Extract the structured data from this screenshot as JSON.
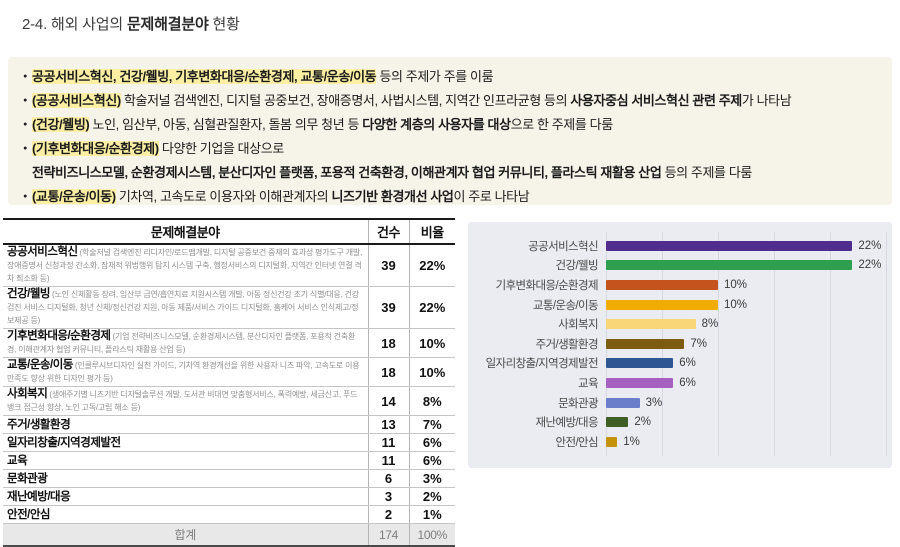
{
  "title": {
    "prefix": "2-4. 해외 사업의 ",
    "emphasis": "문제해결분야",
    "suffix": " 현황"
  },
  "colors": {
    "bullet_panel_bg": "#f6f3e9",
    "highlight": "#fbefa4",
    "chart_bg": "#eaecf2",
    "gridline": "#d5d8e1"
  },
  "bullets": [
    {
      "cont": false,
      "segments": [
        {
          "t": "공공서비스혁신, 건강/웰빙, 기후변화대응/순환경제, 교통/운송/이동",
          "b": true,
          "h": true
        },
        {
          "t": " 등의 주제가 주를 이룸",
          "b": false,
          "h": false
        }
      ]
    },
    {
      "cont": false,
      "segments": [
        {
          "t": "(공공서비스혁신)",
          "b": true,
          "h": true
        },
        {
          "t": " 학술저널 검색엔진, 디지털 공중보건, 장애증명서, 사법시스템, 지역간 인프라균형 등의 ",
          "b": false,
          "h": false
        },
        {
          "t": "사용자중심 서비스혁신 관련 주제",
          "b": true,
          "h": false
        },
        {
          "t": "가 나타남",
          "b": false,
          "h": false
        }
      ]
    },
    {
      "cont": false,
      "segments": [
        {
          "t": "(건강/웰빙)",
          "b": true,
          "h": true
        },
        {
          "t": " 노인, 임산부, 아동, 심혈관질환자, 돌봄 의무 청년 등 ",
          "b": false,
          "h": false
        },
        {
          "t": "다양한 계층의 사용자를 대상",
          "b": true,
          "h": false
        },
        {
          "t": "으로 한 주제를 다룸",
          "b": false,
          "h": false
        }
      ]
    },
    {
      "cont": false,
      "segments": [
        {
          "t": "(기후변화대응/순환경제)",
          "b": true,
          "h": true
        },
        {
          "t": " 다양한 기업을 대상으로",
          "b": false,
          "h": false
        }
      ]
    },
    {
      "cont": true,
      "segments": [
        {
          "t": "전략비즈니스모델, 순환경제시스템, 분산디자인 플랫폼, 포용적 건축환경, 이해관계자 협업 커뮤니티, 플라스틱 재활용 산업",
          "b": true,
          "h": false
        },
        {
          "t": " 등의 주제를 다룸",
          "b": false,
          "h": false
        }
      ]
    },
    {
      "cont": false,
      "segments": [
        {
          "t": "(교통/운송/이동)",
          "b": true,
          "h": true
        },
        {
          "t": " 기차역, 고속도로 이용자와 이해관계자의 ",
          "b": false,
          "h": false
        },
        {
          "t": "니즈기반 환경개선 사업",
          "b": true,
          "h": false
        },
        {
          "t": "이 주로 나타남",
          "b": false,
          "h": false
        }
      ]
    }
  ],
  "table": {
    "headers": [
      "문제해결분야",
      "건수",
      "비율"
    ],
    "rows": [
      {
        "name": "공공서비스혁신",
        "detail": "(학술저널 검색엔진 리디자인/로드맵개발, 디지털 공중보건 중재의 효과성 평가도구 개발, 장애증명서 신청과정 간소화, 잠재적 위법행위 탐지 시스템 구축, 행정서비스의 디지털화, 지역간 인터넷 연결 격차 최소화 등)",
        "count": "39",
        "pct": "22%"
      },
      {
        "name": "건강/웰빙",
        "detail": "(노인 신체활동 장려, 임산부 금연/흡연치료 지원시스템 개발, 아동 정신건강 조기 식별/대응, 건강검진 서비스 디지털화, 청년 신체/정신건강 지원, 아동 제품/서비스 가이드 디지털화, 홈케어 서비스 인식제고/정보제공 등)",
        "count": "39",
        "pct": "22%"
      },
      {
        "name": "기후변화대응/순환경제",
        "detail": "(기업 전략비즈니스모델, 순환경제시스템, 분산디자인 플랫폼, 포용적 건축환경, 이해관계자 협업 커뮤니티, 플라스틱 재활용 산업 등)",
        "count": "18",
        "pct": "10%"
      },
      {
        "name": "교통/운송/이동",
        "detail": "(인클루시브디자인 실천 가이드, 기차역 환경개선을 위한 사용자 니즈 파악, 고속도로 이용 만족도 향상 위한 디자인 평가 등)",
        "count": "18",
        "pct": "10%"
      },
      {
        "name": "사회복지",
        "detail": "(생애주기별 니즈기반 디지털솔루션 개발, 도서관 비대면 맞춤형서비스, 폭력예방, 세금신고, 푸드뱅크 접근성 향상, 노인 고독/고립 해소 등)",
        "count": "14",
        "pct": "8%"
      },
      {
        "name": "주거/생활환경",
        "detail": "",
        "count": "13",
        "pct": "7%"
      },
      {
        "name": "일자리창출/지역경제발전",
        "detail": "",
        "count": "11",
        "pct": "6%"
      },
      {
        "name": "교육",
        "detail": "",
        "count": "11",
        "pct": "6%"
      },
      {
        "name": "문화관광",
        "detail": "",
        "count": "6",
        "pct": "3%"
      },
      {
        "name": "재난예방/대응",
        "detail": "",
        "count": "3",
        "pct": "2%"
      },
      {
        "name": "안전/안심",
        "detail": "",
        "count": "2",
        "pct": "1%"
      }
    ],
    "total": {
      "label": "합계",
      "count": "174",
      "pct": "100%"
    }
  },
  "chart_data": {
    "type": "bar",
    "orientation": "horizontal",
    "title": "",
    "xlabel": "",
    "ylabel": "",
    "categories": [
      "공공서비스혁신",
      "건강/웰빙",
      "기후변화대응/순환경제",
      "교통/운송/이동",
      "사회복지",
      "주거/생활환경",
      "일자리창출/지역경제발전",
      "교육",
      "문화관광",
      "재난예방/대응",
      "안전/안심"
    ],
    "values": [
      22,
      22,
      10,
      10,
      8,
      7,
      6,
      6,
      3,
      2,
      1
    ],
    "value_labels": [
      "22%",
      "22%",
      "10%",
      "10%",
      "8%",
      "7%",
      "6%",
      "6%",
      "3%",
      "2%",
      "1%"
    ],
    "bar_colors": [
      "#4f2d8c",
      "#2e9e4f",
      "#c4531d",
      "#f0ad00",
      "#f9d678",
      "#7d5c10",
      "#2e5693",
      "#a560c0",
      "#6b7ec9",
      "#3f5e26",
      "#c5930a"
    ],
    "xlim": [
      0,
      25
    ],
    "gridlines": [
      0,
      5,
      10,
      15,
      20,
      25
    ],
    "grid": true,
    "legend": false
  }
}
